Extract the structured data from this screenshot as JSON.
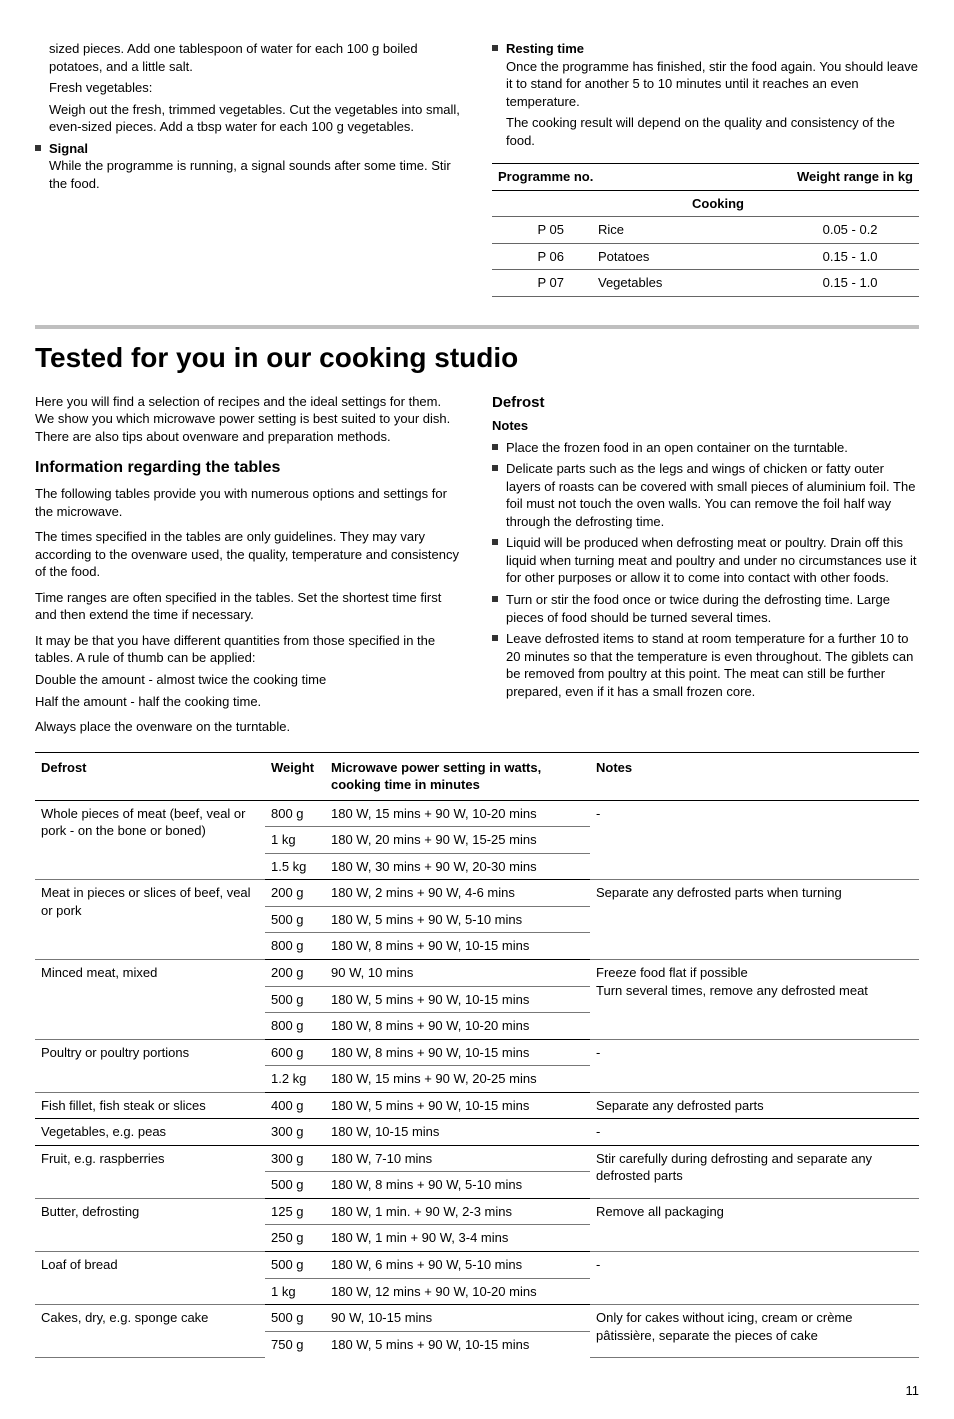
{
  "top": {
    "left": {
      "p1": "sized pieces. Add one tablespoon of water for each 100 g boiled potatoes, and a little salt.",
      "p2": "Fresh vegetables:",
      "p3": "Weigh out the fresh, trimmed vegetables. Cut the vegetables into small, even-sized pieces. Add a tbsp water for each 100 g vegetables.",
      "signal_head": "Signal",
      "signal_body": "While the programme is running, a signal sounds after some time. Stir the food."
    },
    "right": {
      "rest_head": "Resting time",
      "rest_p1": "Once the programme has finished, stir the food again. You should leave it to stand for another 5 to 10 minutes until it reaches an even temperature.",
      "rest_p2": "The cooking result will depend on the quality and consistency of the food.",
      "table": {
        "h1": "Programme no.",
        "h2": "Weight range in kg",
        "sub": "Cooking",
        "rows": [
          {
            "no": "P 05",
            "item": "Rice",
            "range": "0.05 - 0.2"
          },
          {
            "no": "P 06",
            "item": "Potatoes",
            "range": "0.15 - 1.0"
          },
          {
            "no": "P 07",
            "item": "Vegetables",
            "range": "0.15 - 1.0"
          }
        ]
      }
    }
  },
  "main_title": "Tested for you in our cooking studio",
  "intro": "Here you will find a selection of recipes and the ideal settings for them. We show you which microwave power setting is best suited to your dish. There are also tips about ovenware and preparation methods.",
  "info": {
    "heading": "Information regarding the tables",
    "p1": "The following tables provide you with numerous options and settings for the microwave.",
    "p2": "The times specified in the tables are only guidelines. They may vary according to the ovenware used, the quality, temperature and consistency of the food.",
    "p3": "Time ranges are often specified in the tables. Set the shortest time first and then extend the time if necessary.",
    "p4a": "It may be that you have different quantities from those specified in the tables. A rule of thumb can be applied:",
    "p4b": "Double the amount - almost twice the cooking time",
    "p4c": "Half the amount - half the cooking time.",
    "p5": "Always place the ovenware on the turntable."
  },
  "defrost": {
    "heading": "Defrost",
    "notes_label": "Notes",
    "n1": "Place the frozen food in an open container on the turntable.",
    "n2": "Delicate parts such as the legs and wings of chicken or fatty outer layers of roasts can be covered with small pieces of aluminium foil. The foil must not touch the oven walls. You can remove the foil half way through the defrosting time.",
    "n3": "Liquid will be produced when defrosting meat or poultry. Drain off this liquid when turning meat and poultry and under no circumstances use it for other purposes or allow it to come into contact with other foods.",
    "n4": "Turn or stir the food once or twice during the defrosting time. Large pieces of food should be turned several times.",
    "n5": "Leave defrosted items to stand at room temperature for a further 10 to 20 minutes so that the temperature is even throughout. The giblets can be removed from poultry at this point. The meat can still be further prepared, even if it has a small frozen core."
  },
  "dtable": {
    "h1": "Defrost",
    "h2": "Weight",
    "h3": "Microwave power setting in watts, cooking time in minutes",
    "h4": "Notes",
    "rows": [
      {
        "c1": "Whole pieces of meat (beef, veal or pork - on the bone or boned)",
        "c2": "800 g",
        "c3": "180 W, 15 mins + 90 W, 10-20 mins",
        "c4": "-",
        "span1": 3,
        "span4": 3,
        "rl": true
      },
      {
        "c2": "1 kg",
        "c3": "180 W, 20 mins + 90 W, 15-25 mins",
        "rl": true
      },
      {
        "c2": "1.5 kg",
        "c3": "180 W, 30 mins + 90 W, 20-30 mins",
        "gl": true
      },
      {
        "c1": "Meat in pieces or slices of beef, veal or pork",
        "c2": "200 g",
        "c3": "180 W, 2 mins + 90 W, 4-6 mins",
        "c4": "Separate any defrosted parts when turning",
        "span1": 3,
        "span4": 3,
        "rl": true
      },
      {
        "c2": "500 g",
        "c3": "180 W, 5 mins + 90 W, 5-10 mins",
        "rl": true
      },
      {
        "c2": "800 g",
        "c3": "180 W, 8 mins + 90 W, 10-15 mins",
        "gl": true
      },
      {
        "c1": "Minced meat, mixed",
        "c2": "200 g",
        "c3": "90 W, 10 mins",
        "c4": "Freeze food flat if possible\nTurn several times, remove any defrosted meat",
        "span1": 3,
        "span4": 3,
        "rl": true
      },
      {
        "c2": "500 g",
        "c3": "180 W, 5 mins + 90 W, 10-15 mins",
        "rl": true
      },
      {
        "c2": "800 g",
        "c3": "180 W, 8 mins + 90 W, 10-20 mins",
        "gl": true
      },
      {
        "c1": "Poultry or poultry portions",
        "c2": "600 g",
        "c3": "180 W, 8 mins + 90 W, 10-15 mins",
        "c4": "-",
        "span1": 2,
        "span4": 2,
        "rl": true
      },
      {
        "c2": "1.2 kg",
        "c3": "180 W, 15 mins + 90 W, 20-25 mins",
        "gl": true
      },
      {
        "c1": "Fish fillet, fish steak or slices",
        "c2": "400 g",
        "c3": "180 W, 5 mins + 90 W, 10-15 mins",
        "c4": "Separate any defrosted parts",
        "gl": true
      },
      {
        "c1": "Vegetables, e.g. peas",
        "c2": "300 g",
        "c3": "180 W, 10-15 mins",
        "c4": "-",
        "gl": true
      },
      {
        "c1": "Fruit, e.g. raspberries",
        "c2": "300 g",
        "c3": "180 W, 7-10 mins",
        "c4": "Stir carefully during defrosting and separate any defrosted parts",
        "span1": 2,
        "span4": 2,
        "rl": true
      },
      {
        "c2": "500 g",
        "c3": "180 W, 8 mins + 90 W, 5-10 mins",
        "gl": true
      },
      {
        "c1": "Butter, defrosting",
        "c2": "125 g",
        "c3": "180 W, 1 min. + 90 W, 2-3 mins",
        "c4": "Remove all packaging",
        "span1": 2,
        "span4": 2,
        "rl": true
      },
      {
        "c2": "250 g",
        "c3": "180 W, 1 min + 90 W, 3-4 mins",
        "gl": true
      },
      {
        "c1": "Loaf of bread",
        "c2": "500 g",
        "c3": "180 W, 6 mins + 90 W, 5-10 mins",
        "c4": "-",
        "span1": 2,
        "span4": 2,
        "rl": true
      },
      {
        "c2": "1 kg",
        "c3": "180 W, 12 mins + 90 W, 10-20 mins",
        "gl": true
      },
      {
        "c1": "Cakes, dry, e.g. sponge cake",
        "c2": "500 g",
        "c3": "90 W, 10-15 mins",
        "c4": "Only for cakes without icing, cream or crème pâtissière, separate the pieces of cake",
        "span1": 2,
        "span4": 2,
        "rl": true
      },
      {
        "c2": "750 g",
        "c3": "180 W, 5 mins + 90 W, 10-15 mins"
      }
    ]
  },
  "page_number": "11"
}
